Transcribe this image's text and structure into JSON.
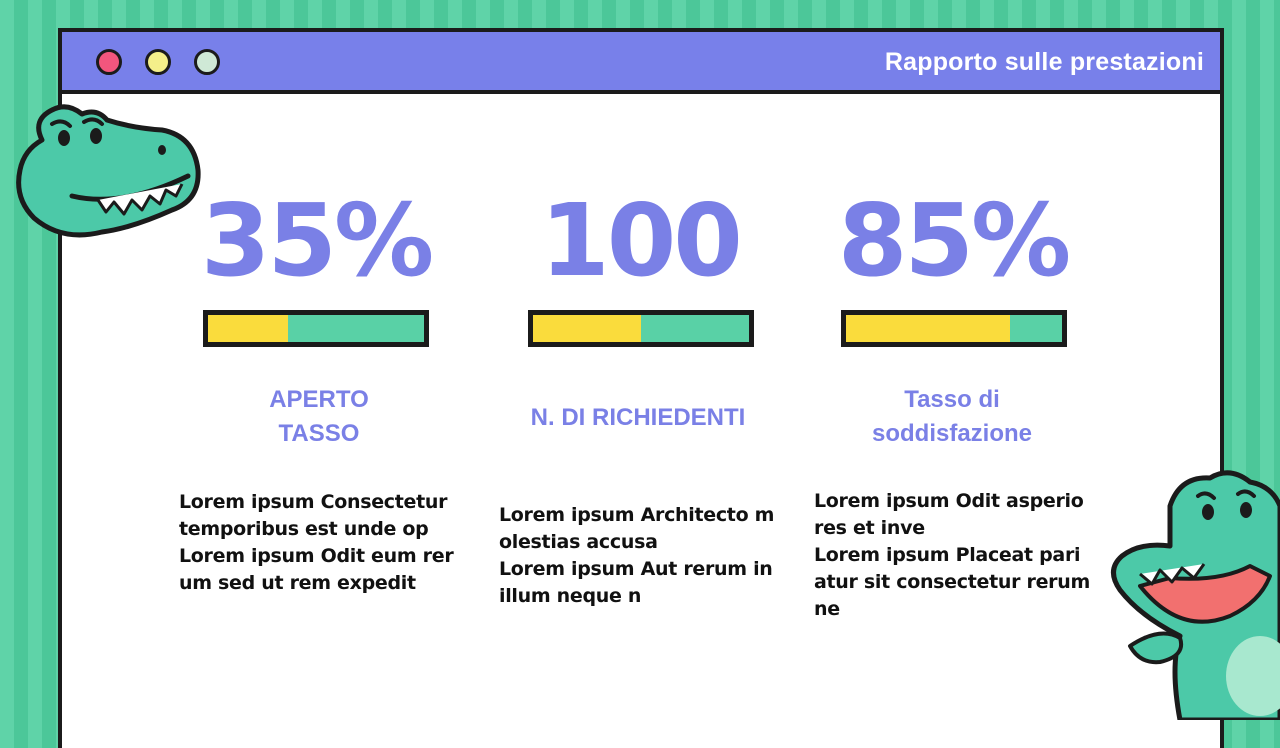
{
  "window": {
    "title": "Rapporto sulle prestazioni",
    "controls": [
      "close",
      "minimize",
      "maximize"
    ]
  },
  "metrics": [
    {
      "value": "35%",
      "progress": 0.37,
      "label_lines": [
        "APERTO",
        "TASSO"
      ],
      "description_lines": [
        "Lorem ipsum Consectetur temporibus est unde op",
        "Lorem ipsum Odit eum rerum sed ut rem expedit"
      ]
    },
    {
      "value": "100",
      "progress": 0.5,
      "label_lines": [
        "N. DI RICHIEDENTI"
      ],
      "description_lines": [
        "Lorem ipsum Architecto molestias accusa",
        "Lorem ipsum Aut rerum in illum neque n"
      ]
    },
    {
      "value": "85%",
      "progress": 0.76,
      "label_lines": [
        "Tasso di",
        "soddisfazione"
      ],
      "description_lines": [
        "Lorem ipsum Odit asperiores et inve",
        "Lorem ipsum Placeat pariatur sit consectetur rerum ne"
      ]
    }
  ],
  "colors": {
    "accent": "#7a80e6",
    "bar_fill": "#fadc3c",
    "bar_track": "#59d1a6",
    "background_stripe": "#5fd3a8"
  },
  "decorations": [
    "crocodile-icon",
    "crocodile-icon"
  ]
}
